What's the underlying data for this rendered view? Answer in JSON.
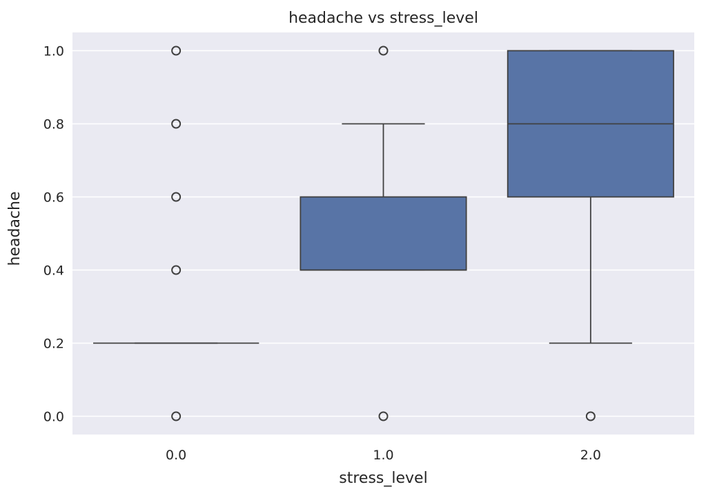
{
  "chart_data": {
    "type": "box",
    "title": "headache vs stress_level",
    "xlabel": "stress_level",
    "ylabel": "headache",
    "ylim": [
      -0.05,
      1.05
    ],
    "yticks": [
      0.0,
      0.2,
      0.4,
      0.6,
      0.8,
      1.0
    ],
    "ytick_labels": [
      "0.0",
      "0.2",
      "0.4",
      "0.6",
      "0.8",
      "1.0"
    ],
    "grid": true,
    "categories": [
      "0.0",
      "1.0",
      "2.0"
    ],
    "box_color": "#5874a6",
    "boxes": [
      {
        "category": "0.0",
        "whisker_low": 0.2,
        "q1": 0.2,
        "median": 0.2,
        "q3": 0.2,
        "whisker_high": 0.2,
        "fliers": [
          0.0,
          0.4,
          0.6,
          0.8,
          1.0
        ]
      },
      {
        "category": "1.0",
        "whisker_low": 0.4,
        "q1": 0.4,
        "median": 0.4,
        "q3": 0.6,
        "whisker_high": 0.8,
        "fliers": [
          0.0,
          1.0
        ]
      },
      {
        "category": "2.0",
        "whisker_low": 0.2,
        "q1": 0.6,
        "median": 0.8,
        "q3": 1.0,
        "whisker_high": 1.0,
        "fliers": [
          0.0
        ]
      }
    ]
  }
}
